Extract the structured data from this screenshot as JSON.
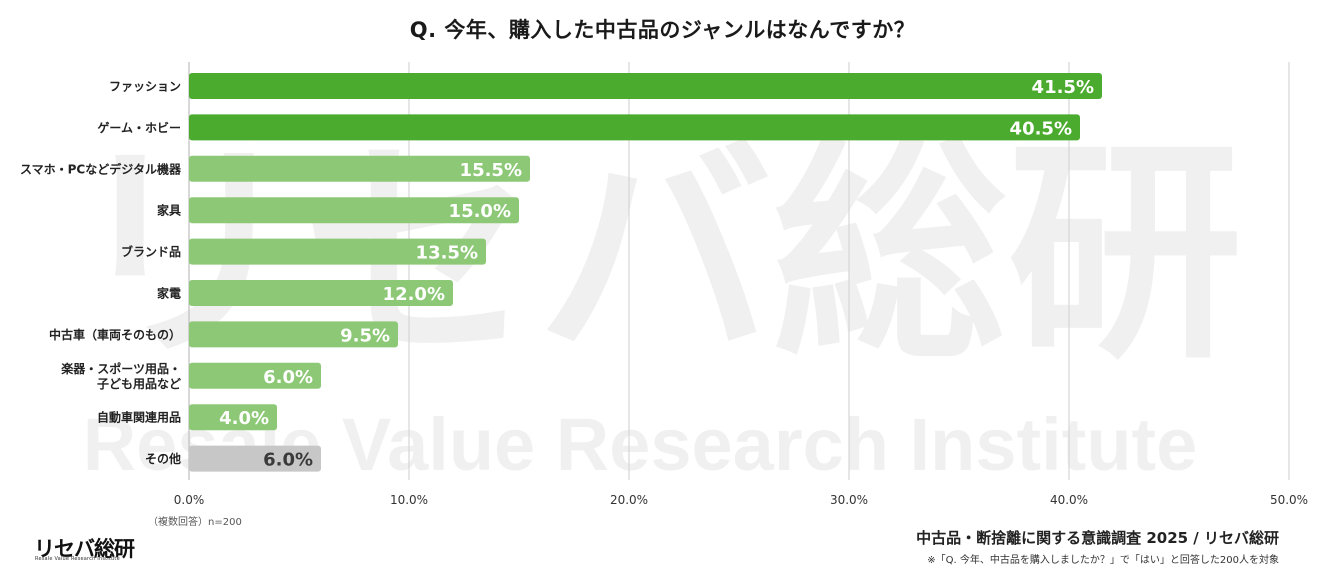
{
  "chart_data": {
    "type": "bar",
    "orientation": "horizontal",
    "title": "Q. 今年、購入した中古品のジャンルはなんですか？",
    "categories": [
      "ファッション",
      "ゲーム・ホビー",
      "スマホ・PCなどデジタル機器",
      "家具",
      "ブランド品",
      "家電",
      "中古車（車両そのもの）",
      "楽器・スポーツ用品・\n子ども用品など",
      "自動車関連用品",
      "その他"
    ],
    "values": [
      41.5,
      40.5,
      15.5,
      15.0,
      13.5,
      12.0,
      9.5,
      6.0,
      4.0,
      6.0
    ],
    "value_labels": [
      "41.5%",
      "40.5%",
      "15.5%",
      "15.0%",
      "13.5%",
      "12.0%",
      "9.5%",
      "6.0%",
      "4.0%",
      "6.0%"
    ],
    "xlim": [
      0,
      50
    ],
    "xticks": [
      0,
      10,
      20,
      30,
      40,
      50
    ],
    "xtick_labels": [
      "0.0%",
      "10.0%",
      "20.0%",
      "30.0%",
      "40.0%",
      "50.0%"
    ],
    "grid": "vertical",
    "colors": [
      "#4aab2e",
      "#4aab2e",
      "#8dc877",
      "#8dc877",
      "#8dc877",
      "#8dc877",
      "#8dc877",
      "#8dc877",
      "#8dc877",
      "#c7c7c7"
    ]
  },
  "note": "（複数回答）n=200",
  "source": "中古品・断捨離に関する意識調査 2025 / リセバ総研",
  "footnote": "※「Q. 今年、中古品を購入しましたか？」で「はい」と回答した200人を対象",
  "logo": {
    "text": "リセバ総研",
    "subtext": "Resale Value Research Institute"
  },
  "watermark": {
    "main": "リセバ総研",
    "sub": "Resale Value Research Institute"
  }
}
